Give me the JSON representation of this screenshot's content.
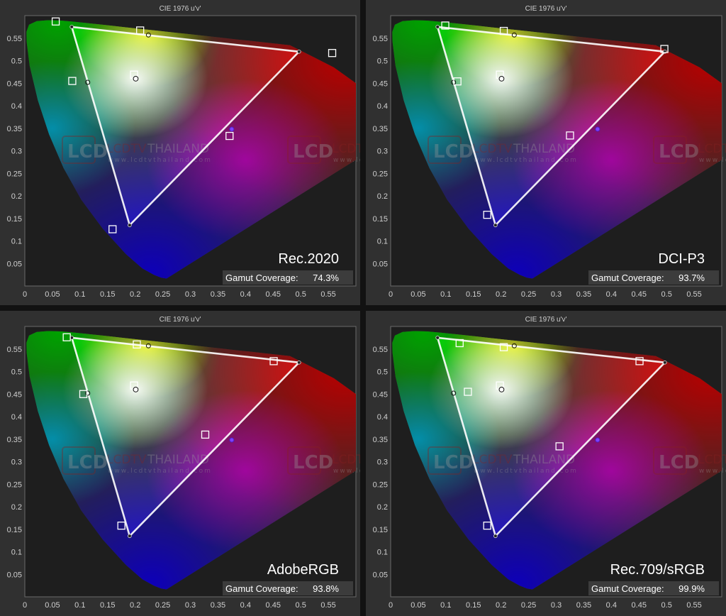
{
  "chart_data": [
    {
      "type": "scatter",
      "title": "CIE 1976 u'v'",
      "standard_label": "Rec.2020",
      "gamut_coverage_label": "Gamut Coverage:",
      "gamut_coverage_value": "74.3%",
      "xlim": [
        0,
        0.6
      ],
      "ylim": [
        0,
        0.6
      ],
      "x_ticks": [
        "0",
        "0.05",
        "0.1",
        "0.15",
        "0.2",
        "0.25",
        "0.3",
        "0.35",
        "0.4",
        "0.45",
        "0.5",
        "0.55"
      ],
      "y_ticks": [
        "0.05",
        "0.1",
        "0.15",
        "0.2",
        "0.25",
        "0.3",
        "0.35",
        "0.4",
        "0.45",
        "0.5",
        "0.55"
      ],
      "measured_gamut": [
        [
          0.085,
          0.575
        ],
        [
          0.497,
          0.52
        ],
        [
          0.19,
          0.135
        ]
      ],
      "targets": [
        [
          0.056,
          0.587
        ],
        [
          0.557,
          0.517
        ],
        [
          0.159,
          0.126
        ],
        [
          0.209,
          0.567
        ],
        [
          0.371,
          0.333
        ],
        [
          0.086,
          0.455
        ],
        [
          0.198,
          0.469
        ]
      ],
      "measured_points": [
        [
          0.224,
          0.557
        ],
        [
          0.375,
          0.348
        ],
        [
          0.114,
          0.452
        ],
        [
          0.201,
          0.46
        ]
      ],
      "measured_colors": [
        "#ffffff",
        "#8040ff",
        "#ffffff",
        "#ffffff"
      ]
    },
    {
      "type": "scatter",
      "title": "CIE 1976 u'v'",
      "standard_label": "DCI-P3",
      "gamut_coverage_label": "Gamut Coverage:",
      "gamut_coverage_value": "93.7%",
      "xlim": [
        0,
        0.6
      ],
      "ylim": [
        0,
        0.6
      ],
      "x_ticks": [
        "0",
        "0.05",
        "0.1",
        "0.15",
        "0.2",
        "0.25",
        "0.3",
        "0.35",
        "0.4",
        "0.45",
        "0.5",
        "0.55"
      ],
      "y_ticks": [
        "0.05",
        "0.1",
        "0.15",
        "0.2",
        "0.25",
        "0.3",
        "0.35",
        "0.4",
        "0.45",
        "0.5",
        "0.55"
      ],
      "measured_gamut": [
        [
          0.085,
          0.575
        ],
        [
          0.497,
          0.52
        ],
        [
          0.19,
          0.135
        ]
      ],
      "targets": [
        [
          0.099,
          0.578
        ],
        [
          0.496,
          0.526
        ],
        [
          0.175,
          0.158
        ],
        [
          0.205,
          0.566
        ],
        [
          0.325,
          0.334
        ],
        [
          0.121,
          0.454
        ],
        [
          0.198,
          0.469
        ]
      ],
      "measured_points": [
        [
          0.224,
          0.557
        ],
        [
          0.375,
          0.348
        ],
        [
          0.114,
          0.452
        ],
        [
          0.201,
          0.46
        ]
      ],
      "measured_colors": [
        "#ffffff",
        "#8040ff",
        "#ffffff",
        "#ffffff"
      ]
    },
    {
      "type": "scatter",
      "title": "CIE 1976 u'v'",
      "standard_label": "AdobeRGB",
      "gamut_coverage_label": "Gamut Coverage:",
      "gamut_coverage_value": "93.8%",
      "xlim": [
        0,
        0.6
      ],
      "ylim": [
        0,
        0.6
      ],
      "x_ticks": [
        "0",
        "0.05",
        "0.1",
        "0.15",
        "0.2",
        "0.25",
        "0.3",
        "0.35",
        "0.4",
        "0.45",
        "0.5",
        "0.55"
      ],
      "y_ticks": [
        "0.05",
        "0.1",
        "0.15",
        "0.2",
        "0.25",
        "0.3",
        "0.35",
        "0.4",
        "0.45",
        "0.5",
        "0.55"
      ],
      "measured_gamut": [
        [
          0.085,
          0.575
        ],
        [
          0.497,
          0.52
        ],
        [
          0.19,
          0.135
        ]
      ],
      "targets": [
        [
          0.076,
          0.576
        ],
        [
          0.451,
          0.523
        ],
        [
          0.175,
          0.158
        ],
        [
          0.203,
          0.56
        ],
        [
          0.327,
          0.36
        ],
        [
          0.106,
          0.45
        ],
        [
          0.198,
          0.469
        ]
      ],
      "measured_points": [
        [
          0.224,
          0.557
        ],
        [
          0.375,
          0.348
        ],
        [
          0.114,
          0.452
        ],
        [
          0.201,
          0.46
        ]
      ],
      "measured_colors": [
        "#ffffff",
        "#8040ff",
        "#ffffff",
        "#ffffff"
      ]
    },
    {
      "type": "scatter",
      "title": "CIE 1976 u'v'",
      "standard_label": "Rec.709/sRGB",
      "gamut_coverage_label": "Gamut Coverage:",
      "gamut_coverage_value": "99.9%",
      "xlim": [
        0,
        0.6
      ],
      "ylim": [
        0,
        0.6
      ],
      "x_ticks": [
        "0",
        "0.05",
        "0.1",
        "0.15",
        "0.2",
        "0.25",
        "0.3",
        "0.35",
        "0.4",
        "0.45",
        "0.5",
        "0.55"
      ],
      "y_ticks": [
        "0.05",
        "0.1",
        "0.15",
        "0.2",
        "0.25",
        "0.3",
        "0.35",
        "0.4",
        "0.45",
        "0.5",
        "0.55"
      ],
      "measured_gamut": [
        [
          0.085,
          0.575
        ],
        [
          0.497,
          0.52
        ],
        [
          0.19,
          0.135
        ]
      ],
      "targets": [
        [
          0.125,
          0.563
        ],
        [
          0.451,
          0.523
        ],
        [
          0.175,
          0.158
        ],
        [
          0.205,
          0.554
        ],
        [
          0.306,
          0.334
        ],
        [
          0.14,
          0.455
        ],
        [
          0.198,
          0.469
        ]
      ],
      "measured_points": [
        [
          0.224,
          0.557
        ],
        [
          0.375,
          0.348
        ],
        [
          0.114,
          0.452
        ],
        [
          0.201,
          0.46
        ]
      ],
      "measured_colors": [
        "#ffffff",
        "#8040ff",
        "#ffffff",
        "#ffffff"
      ]
    }
  ],
  "watermark": {
    "logo": "LCD",
    "name_prefix": "LCDTV",
    "name_suffix": "THAILAND",
    "url": "www.lcdtvthailand.com"
  },
  "colors": {
    "background": "#303030",
    "plot_background": "#1e1e1e",
    "axis_text": "#cfcfcf",
    "gamut_line": "#ffffff",
    "panel_gap": "#121212"
  }
}
